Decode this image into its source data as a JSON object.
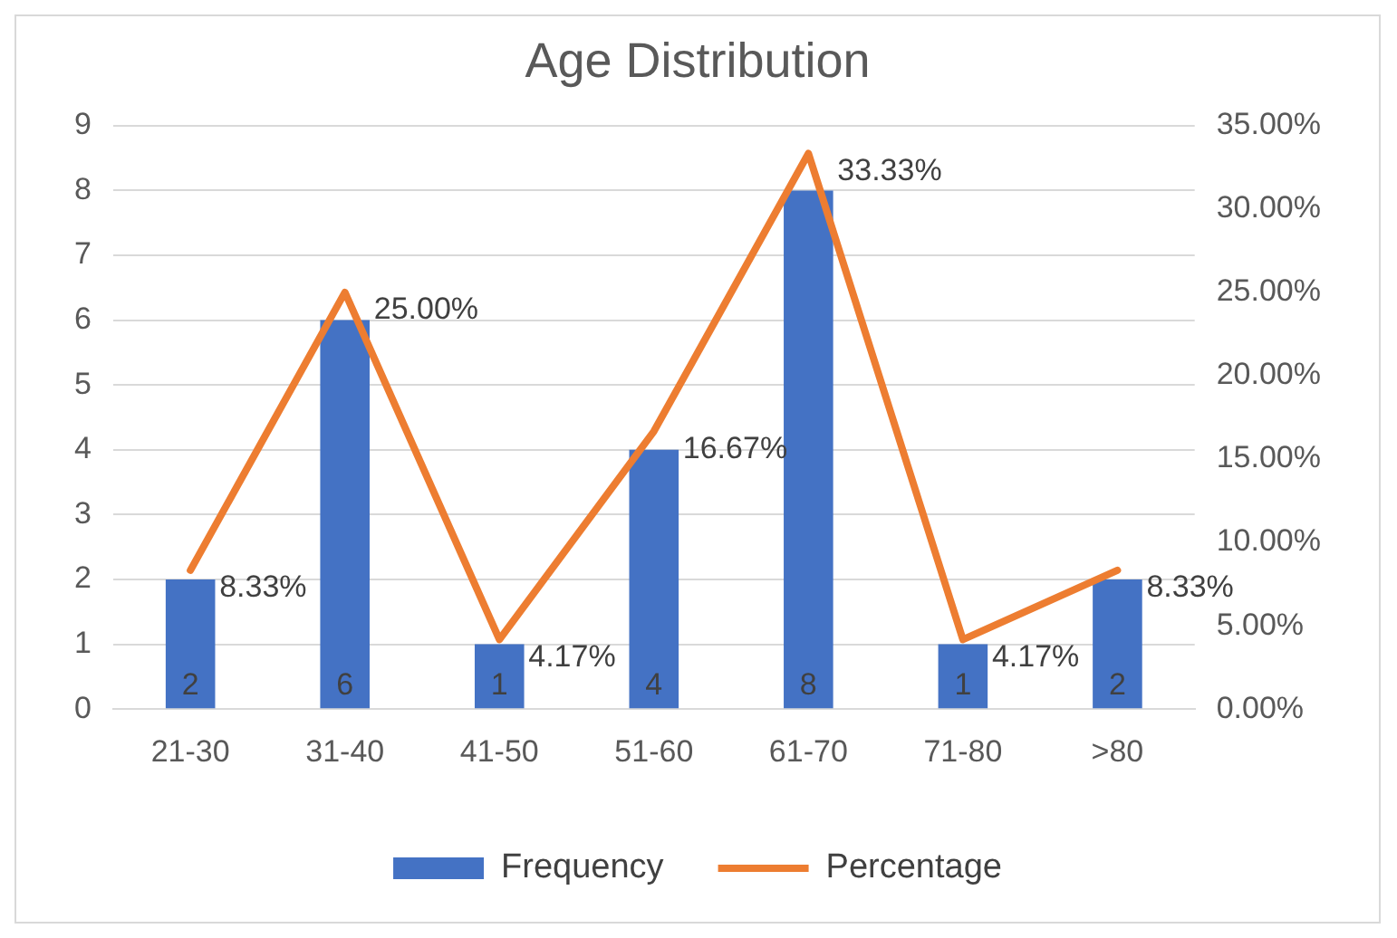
{
  "chart_data": {
    "type": "bar",
    "title": "Age Distribution",
    "categories": [
      "21-30",
      "31-40",
      "41-50",
      "51-60",
      "61-70",
      "71-80",
      ">80"
    ],
    "series": [
      {
        "name": "Frequency",
        "color": "#4472c4",
        "values": [
          2,
          6,
          1,
          4,
          8,
          1,
          2
        ],
        "value_labels": [
          "2",
          "6",
          "1",
          "4",
          "8",
          "1",
          "2"
        ]
      },
      {
        "name": "Percentage",
        "type": "line",
        "axis": "y2",
        "color": "#ed7d31",
        "marker": "none",
        "values": [
          8.33,
          25,
          4.17,
          16.67,
          33.33,
          4.17,
          8.33
        ],
        "value_labels": [
          "8.33%",
          "25.00%",
          "4.17%",
          "16.67%",
          "33.33%",
          "4.17%",
          "8.33%"
        ]
      }
    ],
    "ylim": [
      0,
      9
    ],
    "yticks": [
      0,
      1,
      2,
      3,
      4,
      5,
      6,
      7,
      8,
      9
    ],
    "y2lim": [
      0,
      35
    ],
    "y2ticks": [
      {
        "value": 0,
        "label": "0.00%"
      },
      {
        "value": 5,
        "label": "5.00%"
      },
      {
        "value": 10,
        "label": "10.00%"
      },
      {
        "value": 15,
        "label": "15.00%"
      },
      {
        "value": 20,
        "label": "20.00%"
      },
      {
        "value": 25,
        "label": "25.00%"
      },
      {
        "value": 30,
        "label": "30.00%"
      },
      {
        "value": 35,
        "label": "35.00%"
      }
    ],
    "grid": "y",
    "legend": "bottom"
  }
}
